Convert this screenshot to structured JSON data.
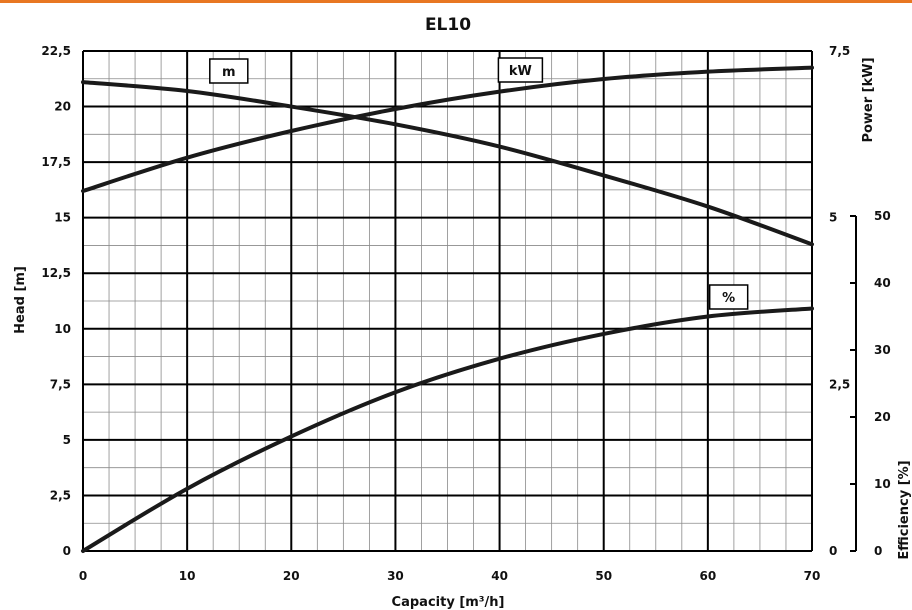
{
  "header": {
    "accent_color": "#e87722"
  },
  "chart_data": {
    "type": "line",
    "title": "EL10",
    "xlabel": "Capacity [m³/h]",
    "ylabel_left": "Head [m]",
    "ylabel_right_power": "Power [kW]",
    "ylabel_right_efficiency": "Efficiency [%]",
    "xlim": [
      0,
      70
    ],
    "ylim_head": [
      0,
      22.5
    ],
    "ylim_power": [
      0,
      7.5
    ],
    "ylim_efficiency": [
      0,
      50
    ],
    "x_ticks": [
      "0",
      "10",
      "20",
      "30",
      "40",
      "50",
      "60",
      "70"
    ],
    "head_ticks": [
      "0",
      "2,5",
      "5",
      "7,5",
      "10",
      "12,5",
      "15",
      "17,5",
      "20",
      "22,5"
    ],
    "power_ticks": [
      "0",
      "2,5",
      "5",
      "7,5"
    ],
    "efficiency_ticks": [
      "0",
      "10",
      "20",
      "30",
      "40",
      "50"
    ],
    "grid": true,
    "series": [
      {
        "label": "m",
        "axis": "head",
        "x": [
          0,
          10,
          20,
          30,
          40,
          50,
          60,
          70
        ],
        "y": [
          21.1,
          20.7,
          20.0,
          19.2,
          18.2,
          16.9,
          15.5,
          13.8
        ]
      },
      {
        "label": "kW",
        "axis": "power",
        "x": [
          0,
          10,
          20,
          30,
          40,
          50,
          60,
          70
        ],
        "y": [
          5.4,
          5.9,
          6.3,
          6.63,
          6.89,
          7.08,
          7.19,
          7.25
        ]
      },
      {
        "label": "%",
        "axis": "efficiency",
        "x": [
          0,
          10,
          20,
          30,
          40,
          50,
          60,
          70
        ],
        "y": [
          0,
          9.3,
          17.1,
          23.7,
          28.7,
          32.4,
          35.0,
          36.2
        ]
      }
    ]
  }
}
